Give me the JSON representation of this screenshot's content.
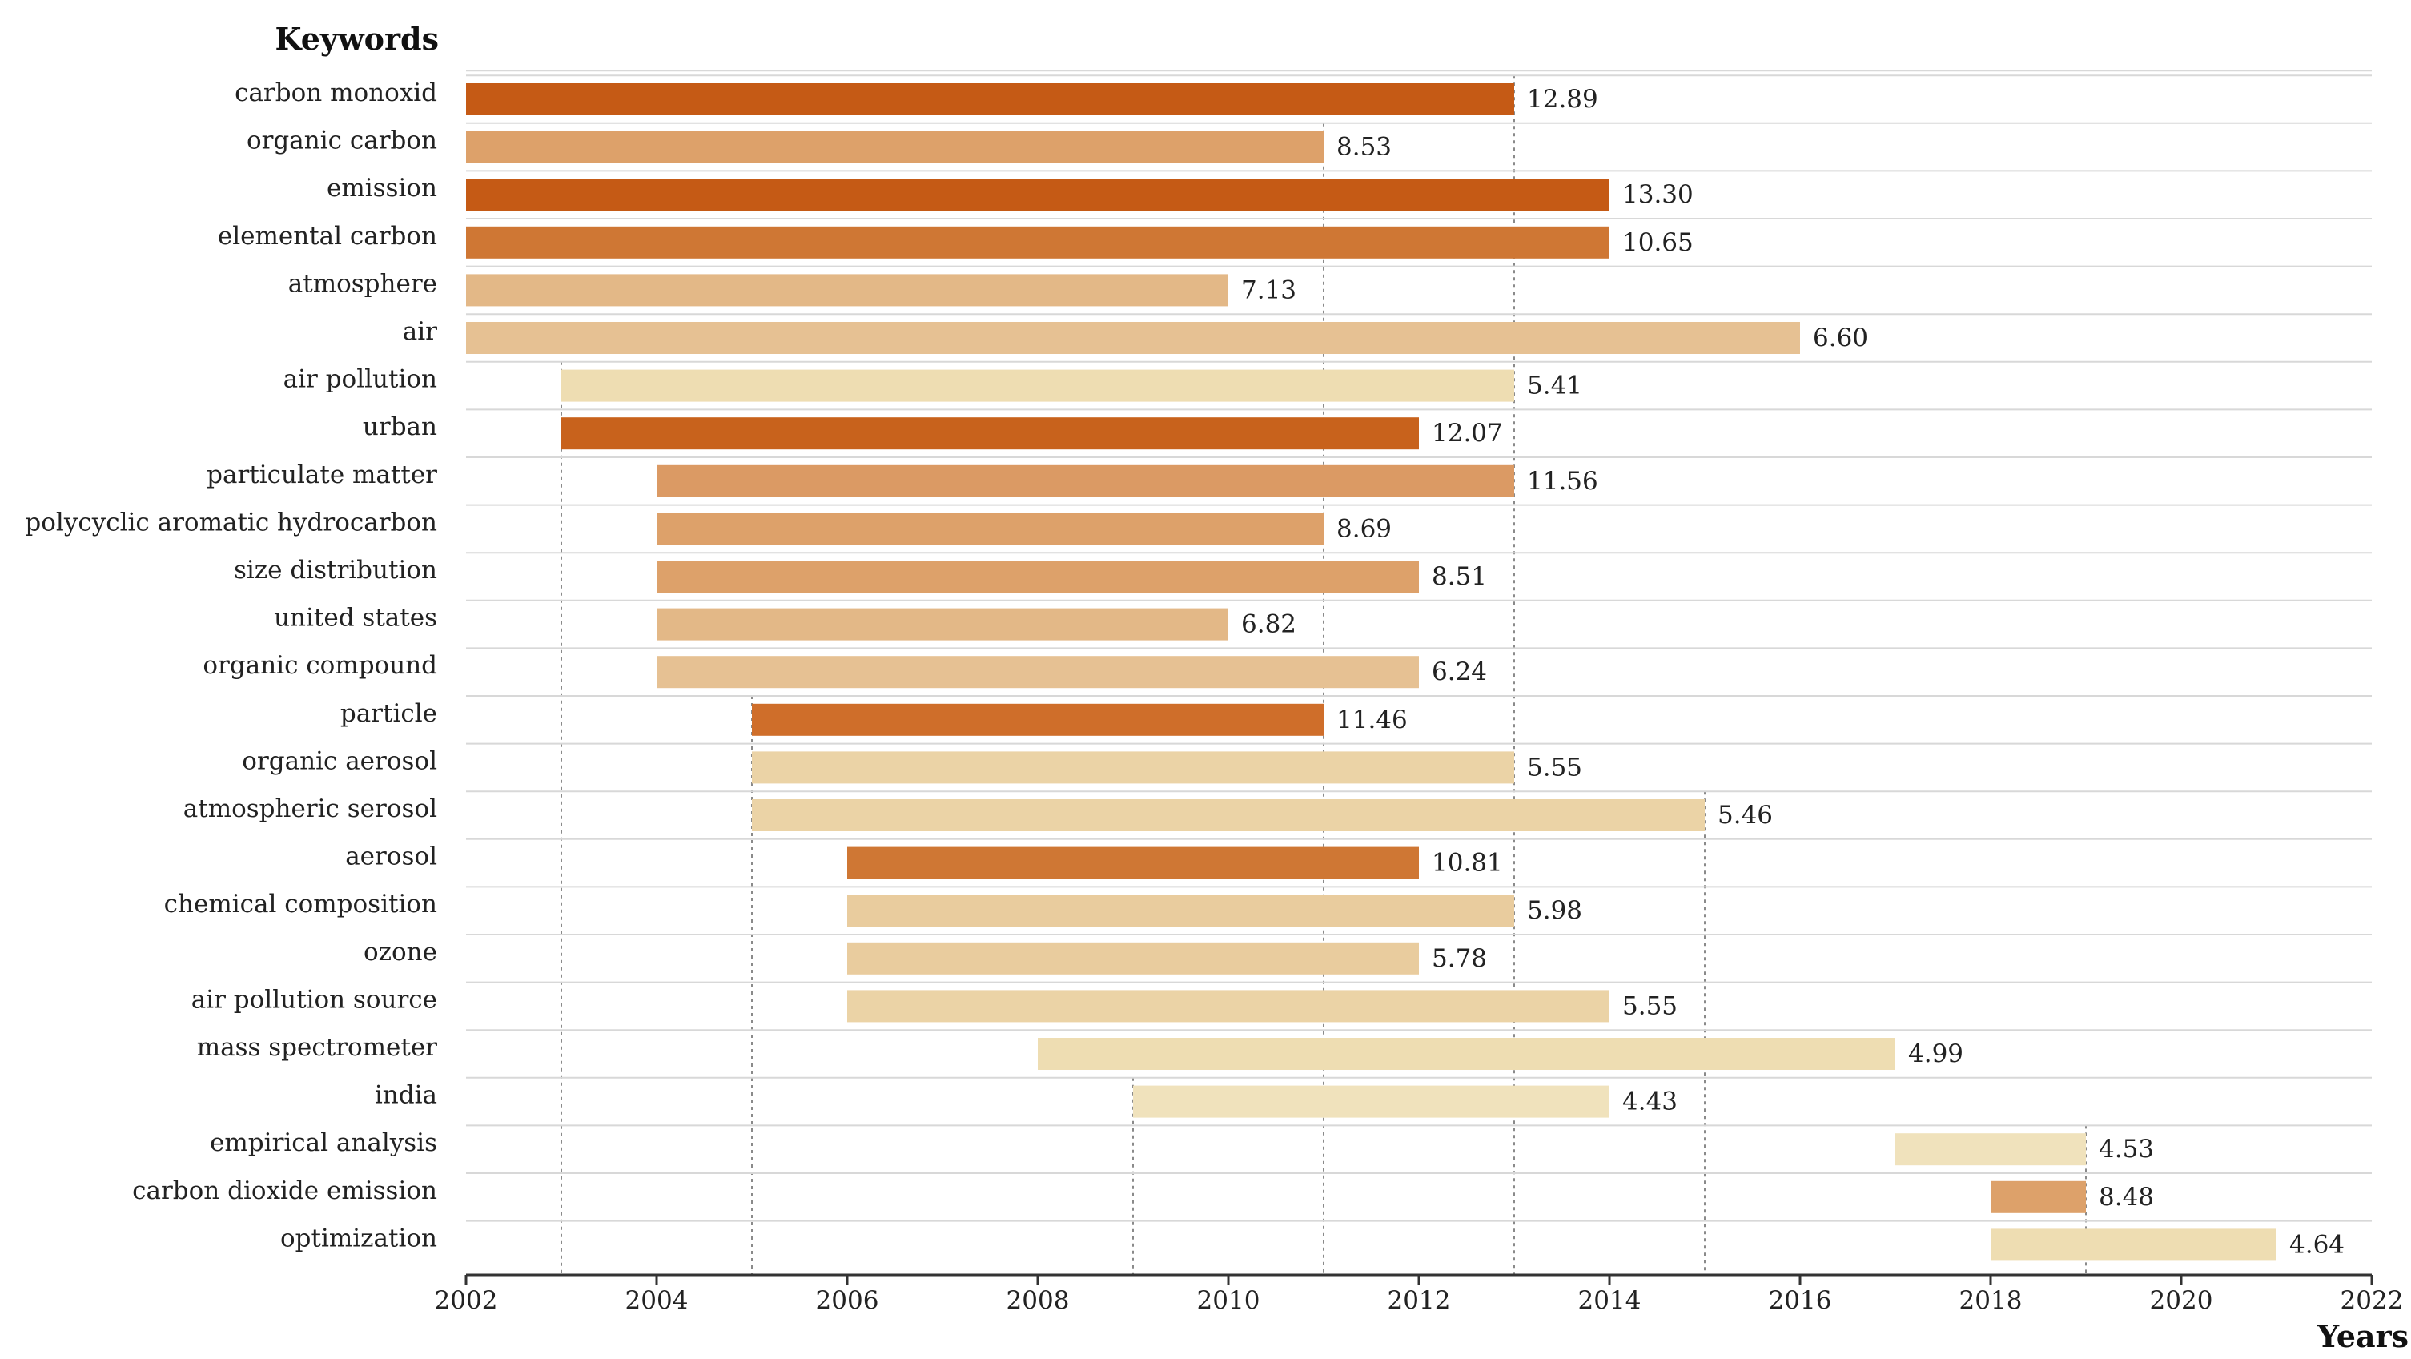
{
  "chart_data": {
    "type": "bar",
    "subtype": "timeline-range",
    "title": "",
    "ylabel": "Keywords",
    "xlabel": "Years",
    "xlim": [
      2002,
      2022
    ],
    "xticks": [
      2002,
      2004,
      2006,
      2008,
      2010,
      2012,
      2014,
      2016,
      2018,
      2020,
      2022
    ],
    "grid": "row separators with dotted vertical guides",
    "legend": "none",
    "colors": {
      "darkest": "#C55A15",
      "dark": "#CF7734",
      "medium": "#DDA16A",
      "light": "#E3B887",
      "lighter": "#E9C99A",
      "lightest": "#EEDDB2",
      "separator": "#d8d8d8",
      "axis": "#333333",
      "guide": "#8a8a8a"
    },
    "series": [
      {
        "keyword": "carbon monoxid",
        "begin": 2002,
        "end": 2013,
        "strength": "12.89",
        "color": "#C55A15"
      },
      {
        "keyword": "organic carbon",
        "begin": 2002,
        "end": 2011,
        "strength": "8.53",
        "color": "#DDA16A"
      },
      {
        "keyword": "emission",
        "begin": 2002,
        "end": 2014,
        "strength": "13.30",
        "color": "#C55A15"
      },
      {
        "keyword": "elemental carbon",
        "begin": 2002,
        "end": 2014,
        "strength": "10.65",
        "color": "#CF7734"
      },
      {
        "keyword": "atmosphere",
        "begin": 2002,
        "end": 2010,
        "strength": "7.13",
        "color": "#E3B887"
      },
      {
        "keyword": "air",
        "begin": 2002,
        "end": 2016,
        "strength": "6.60",
        "color": "#E6C193"
      },
      {
        "keyword": "air pollution",
        "begin": 2003,
        "end": 2013,
        "strength": "5.41",
        "color": "#EEDDB2"
      },
      {
        "keyword": "urban",
        "begin": 2003,
        "end": 2012,
        "strength": "12.07",
        "color": "#C8621C"
      },
      {
        "keyword": "particulate matter",
        "begin": 2004,
        "end": 2013,
        "strength": "11.56",
        "color": "#DB9A64"
      },
      {
        "keyword": "polycyclic aromatic hydrocarbon",
        "begin": 2004,
        "end": 2011,
        "strength": "8.69",
        "color": "#DDA16A"
      },
      {
        "keyword": "size distribution",
        "begin": 2004,
        "end": 2012,
        "strength": "8.51",
        "color": "#DDA16A"
      },
      {
        "keyword": "united states",
        "begin": 2004,
        "end": 2010,
        "strength": "6.82",
        "color": "#E3B887"
      },
      {
        "keyword": "organic compound",
        "begin": 2004,
        "end": 2012,
        "strength": "6.24",
        "color": "#E6C193"
      },
      {
        "keyword": "particle",
        "begin": 2005,
        "end": 2011,
        "strength": "11.46",
        "color": "#CF6E2A"
      },
      {
        "keyword": "organic aerosol",
        "begin": 2005,
        "end": 2013,
        "strength": "5.55",
        "color": "#EBD3A6"
      },
      {
        "keyword": "atmospheric serosol",
        "begin": 2005,
        "end": 2015,
        "strength": "5.46",
        "color": "#EBD3A6"
      },
      {
        "keyword": "aerosol",
        "begin": 2006,
        "end": 2012,
        "strength": "10.81",
        "color": "#CF7734"
      },
      {
        "keyword": "chemical composition",
        "begin": 2006,
        "end": 2013,
        "strength": "5.98",
        "color": "#E9CC9E"
      },
      {
        "keyword": "ozone",
        "begin": 2006,
        "end": 2012,
        "strength": "5.78",
        "color": "#E9CC9E"
      },
      {
        "keyword": "air pollution source",
        "begin": 2006,
        "end": 2014,
        "strength": "5.55",
        "color": "#EBD3A6"
      },
      {
        "keyword": "mass spectrometer",
        "begin": 2008,
        "end": 2017,
        "strength": "4.99",
        "color": "#EEDDB2"
      },
      {
        "keyword": "india",
        "begin": 2009,
        "end": 2014,
        "strength": "4.43",
        "color": "#F0E2BC"
      },
      {
        "keyword": "empirical analysis",
        "begin": 2017,
        "end": 2019,
        "strength": "4.53",
        "color": "#F0E2BC"
      },
      {
        "keyword": "carbon dioxide emission",
        "begin": 2018,
        "end": 2019,
        "strength": "8.48",
        "color": "#DDA16A"
      },
      {
        "keyword": "optimization",
        "begin": 2018,
        "end": 2021,
        "strength": "4.64",
        "color": "#EEDDB2"
      }
    ]
  }
}
